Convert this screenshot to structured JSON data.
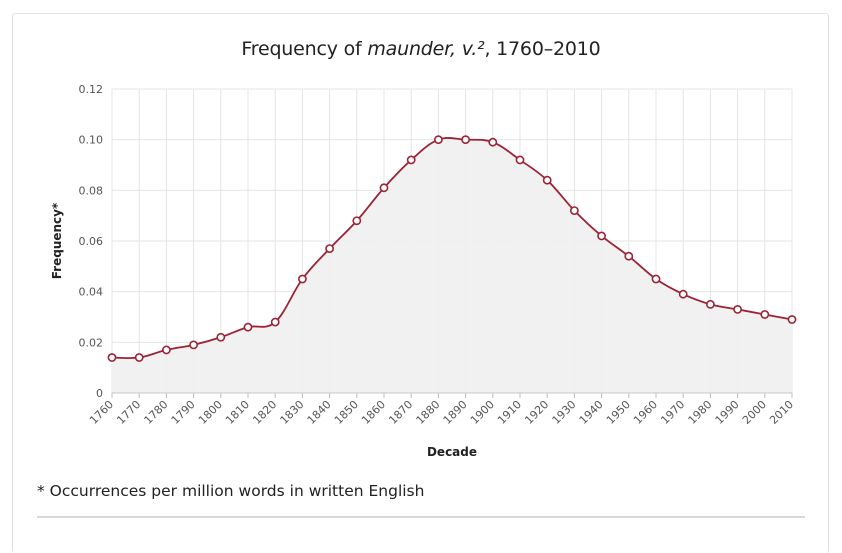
{
  "title": {
    "prefix": "Frequency of ",
    "headword": "maunder, v.²",
    "suffix": ", 1760–2010"
  },
  "footnote": "* Occurrences per million words in written English",
  "colors": {
    "line": "#9b2335",
    "area": "#f0f0f0",
    "grid": "#e4e4e4",
    "marker_fill": "#ffffff"
  },
  "chart_data": {
    "type": "line",
    "title": "Frequency of maunder, v.², 1760–2010",
    "xlabel": "Decade",
    "ylabel": "Frequency*",
    "ylim": [
      0,
      0.12
    ],
    "yticks": [
      "0",
      "0.02",
      "0.04",
      "0.06",
      "0.08",
      "0.10",
      "0.12"
    ],
    "yticks_values": [
      0,
      0.02,
      0.04,
      0.06,
      0.08,
      0.1,
      0.12
    ],
    "grid": true,
    "area_fill": true,
    "x": [
      "1760",
      "1770",
      "1780",
      "1790",
      "1800",
      "1810",
      "1820",
      "1830",
      "1840",
      "1850",
      "1860",
      "1870",
      "1880",
      "1890",
      "1900",
      "1910",
      "1920",
      "1930",
      "1940",
      "1950",
      "1960",
      "1970",
      "1980",
      "1990",
      "2000",
      "2010"
    ],
    "series": [
      {
        "values": [
          0.014,
          0.014,
          0.017,
          0.019,
          0.022,
          0.026,
          0.028,
          0.045,
          0.057,
          0.068,
          0.081,
          0.092,
          0.1,
          0.1,
          0.099,
          0.092,
          0.084,
          0.072,
          0.062,
          0.054,
          0.045,
          0.039,
          0.035,
          0.033,
          0.031,
          0.029
        ]
      }
    ]
  }
}
